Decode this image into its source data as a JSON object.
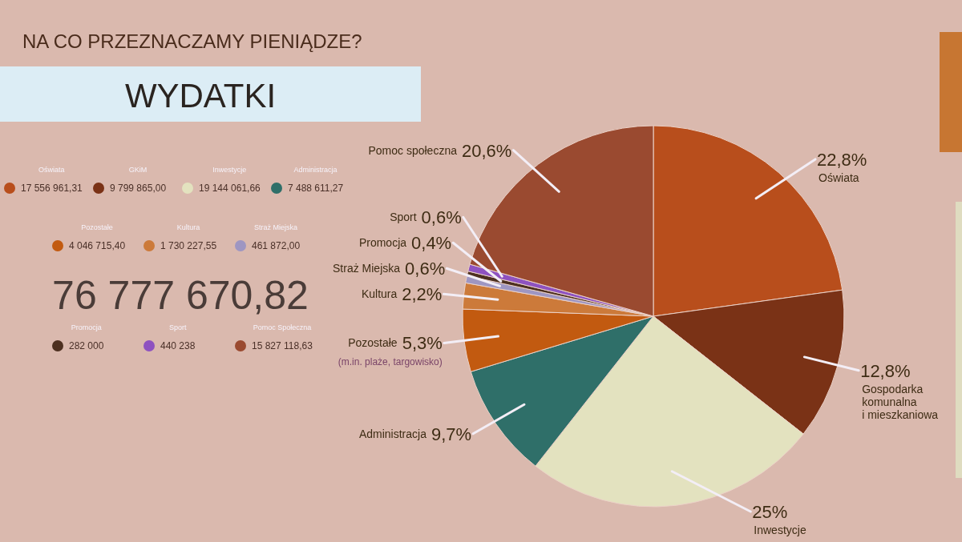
{
  "chart_data": [
    {
      "type": "other",
      "title": "NA CO PRZEZNACZAMY PIENIĄDZE?",
      "subtitle": "WYDATKI",
      "categories": [
        "Oświata",
        "GKiM",
        "Inwestycje",
        "Administracja",
        "Pozostałe",
        "Kultura",
        "Straż Miejska",
        "Promocja",
        "Sport",
        "Pomoc Społeczna"
      ],
      "value_labels": [
        "17 556 961,31",
        "9 799 865,00",
        "19 144 061,66",
        "7 488 611,27",
        "4 046 715,40",
        "1 730 227,55",
        "461 872,00",
        "282 000",
        "440 238",
        "15 827 118,63"
      ],
      "colors": [
        "#b84e1c",
        "#7a3216",
        "#e3e2bf",
        "#2f6f69",
        "#c25a10",
        "#cc7a3a",
        "#9e96c2",
        "#4d3020",
        "#8e52c0",
        "#9a4a30"
      ],
      "annotations": [
        "76 777 670,82"
      ]
    },
    {
      "type": "pie",
      "categories": [
        "Oświata",
        "Gospodarka komunalna i mieszkaniowa",
        "Inwestycje",
        "Administracja",
        "Pozostałe",
        "Kultura",
        "Straż Miejska",
        "Promocja",
        "Sport",
        "Pomoc społeczna"
      ],
      "values": [
        22.8,
        12.8,
        25,
        9.7,
        5.3,
        2.2,
        0.6,
        0.4,
        0.6,
        20.6
      ],
      "colors": [
        "#b84e1c",
        "#7a3216",
        "#e3e2bf",
        "#2f6f69",
        "#c25a10",
        "#cc7a3a",
        "#9e96c2",
        "#4d3020",
        "#8e52c0",
        "#9a4a30"
      ],
      "value_labels": [
        "22,8%",
        "12,8%",
        "25%",
        "9,7%",
        "5,3%",
        "2,2%",
        "0,6%",
        "0,4%",
        "0,6%",
        "20,6%"
      ],
      "annotations": [
        {
          "text": "(m.in. plaże, targowisko)",
          "x": "Pozostałe"
        }
      ]
    }
  ]
}
